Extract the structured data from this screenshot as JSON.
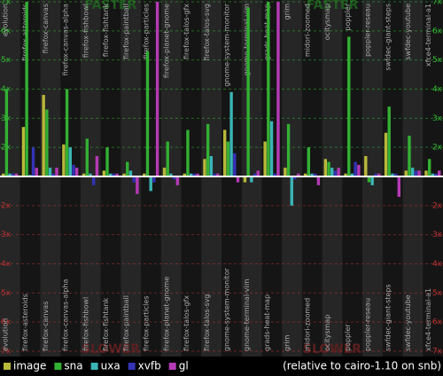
{
  "chart_data": {
    "type": "bar",
    "upper_label": "FASTER",
    "lower_label": "SLOWER",
    "footer": "(relative to cairo-1.10 on snb)",
    "categories": [
      "evolution",
      "firefox-asteroids",
      "firefox-canvas",
      "firefox-canvas-alpha",
      "firefox-fishbowl",
      "firefox-fishtank",
      "firefox-paintball",
      "firefox-particles",
      "firefox-planet-gnome",
      "firefox-talos-gfx",
      "firefox-talos-svg",
      "gnome-system-monitor",
      "gnome-terminal-vim",
      "grads-heat-map",
      "grim",
      "midori-zoomed",
      "ocitysmap",
      "poppler",
      "poppler-reseau",
      "swfdec-giant-steps",
      "swfdec-youtube",
      "xfce4-terminal-a1"
    ],
    "series": [
      {
        "name": "image",
        "color": "#b8b83a",
        "values": [
          1.1,
          2.7,
          3.8,
          2.1,
          1.1,
          1.2,
          1.1,
          1.1,
          1.3,
          1.1,
          1.6,
          2.6,
          -1.2,
          2.2,
          1.3,
          1.1,
          1.6,
          1.1,
          1.7,
          2.5,
          1.2,
          1.2
        ]
      },
      {
        "name": "sna",
        "color": "#33b033",
        "values": [
          4.0,
          7.0,
          3.3,
          4.0,
          2.3,
          2.0,
          1.5,
          5.3,
          2.2,
          2.6,
          2.8,
          2.2,
          6.8,
          7.0,
          2.8,
          2.0,
          1.5,
          5.8,
          -1.2,
          3.4,
          2.4,
          1.6
        ]
      },
      {
        "name": "uxa",
        "color": "#3ab5b5",
        "values": [
          1.1,
          1.05,
          1.3,
          2.0,
          1.1,
          1.1,
          1.2,
          -1.5,
          1.1,
          1.1,
          1.7,
          3.9,
          -1.2,
          2.9,
          -2.0,
          1.1,
          1.3,
          1.1,
          -1.3,
          1.1,
          1.3,
          1.1
        ]
      },
      {
        "name": "xvfb",
        "color": "#3333b5",
        "values": [
          1.1,
          2.0,
          1.1,
          1.4,
          -1.3,
          1.1,
          -1.2,
          -1.2,
          -1.1,
          1.1,
          1.1,
          1.8,
          1.1,
          1.1,
          -1.1,
          1.1,
          1.2,
          1.5,
          1.1,
          1.1,
          1.2,
          1.1
        ]
      },
      {
        "name": "gl",
        "color": "#b53ab5",
        "values": [
          1.1,
          1.3,
          1.3,
          1.3,
          1.7,
          1.1,
          -1.6,
          7.0,
          -1.3,
          1.1,
          1.1,
          -1.2,
          1.2,
          7.0,
          1.1,
          -1.3,
          1.3,
          1.4,
          1.1,
          -1.7,
          1.2,
          1.2
        ]
      }
    ],
    "ylim": [
      -7,
      7
    ],
    "yticks": [
      {
        "value": 7,
        "label": "7x"
      },
      {
        "value": 6,
        "label": "6x"
      },
      {
        "value": 5,
        "label": "5x"
      },
      {
        "value": 4,
        "label": "4x"
      },
      {
        "value": 3,
        "label": "3x"
      },
      {
        "value": 2,
        "label": "2x"
      },
      {
        "value": -2,
        "label": "2x"
      },
      {
        "value": -3,
        "label": "3x"
      },
      {
        "value": -4,
        "label": "4x"
      },
      {
        "value": -5,
        "label": "5x"
      },
      {
        "value": -6,
        "label": "6x"
      },
      {
        "value": -7,
        "label": "7x"
      }
    ],
    "grid": true
  }
}
